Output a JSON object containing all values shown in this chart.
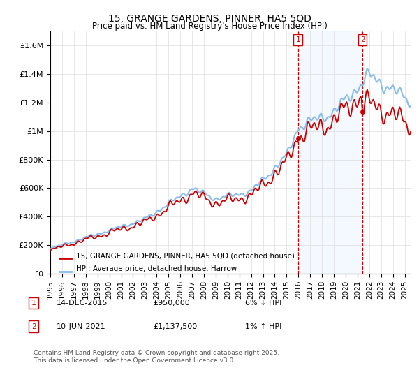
{
  "title": "15, GRANGE GARDENS, PINNER, HA5 5QD",
  "subtitle": "Price paid vs. HM Land Registry's House Price Index (HPI)",
  "hpi_label": "HPI: Average price, detached house, Harrow",
  "property_label": "15, GRANGE GARDENS, PINNER, HA5 5QD (detached house)",
  "footnote": "Contains HM Land Registry data © Crown copyright and database right 2025.\nThis data is licensed under the Open Government Licence v3.0.",
  "annotation1": {
    "num": "1",
    "date": "14-DEC-2015",
    "price": "£950,000",
    "pct": "6% ↓ HPI"
  },
  "annotation2": {
    "num": "2",
    "date": "10-JUN-2021",
    "price": "£1,137,500",
    "pct": "1% ↑ HPI"
  },
  "vline1_x": 2015.96,
  "vline2_x": 2021.44,
  "sale1_x": 2015.96,
  "sale1_y": 950000,
  "sale2_x": 2021.44,
  "sale2_y": 1137500,
  "hpi_color": "#88bbee",
  "price_color": "#cc0000",
  "vline_color": "#cc0000",
  "highlight_color": "#ddeeff",
  "ylim": [
    0,
    1700000
  ],
  "yticks": [
    0,
    200000,
    400000,
    600000,
    800000,
    1000000,
    1200000,
    1400000,
    1600000
  ],
  "ytick_labels": [
    "£0",
    "£200K",
    "£400K",
    "£600K",
    "£800K",
    "£1M",
    "£1.2M",
    "£1.4M",
    "£1.6M"
  ],
  "xmin": 1995.0,
  "xmax": 2025.5
}
